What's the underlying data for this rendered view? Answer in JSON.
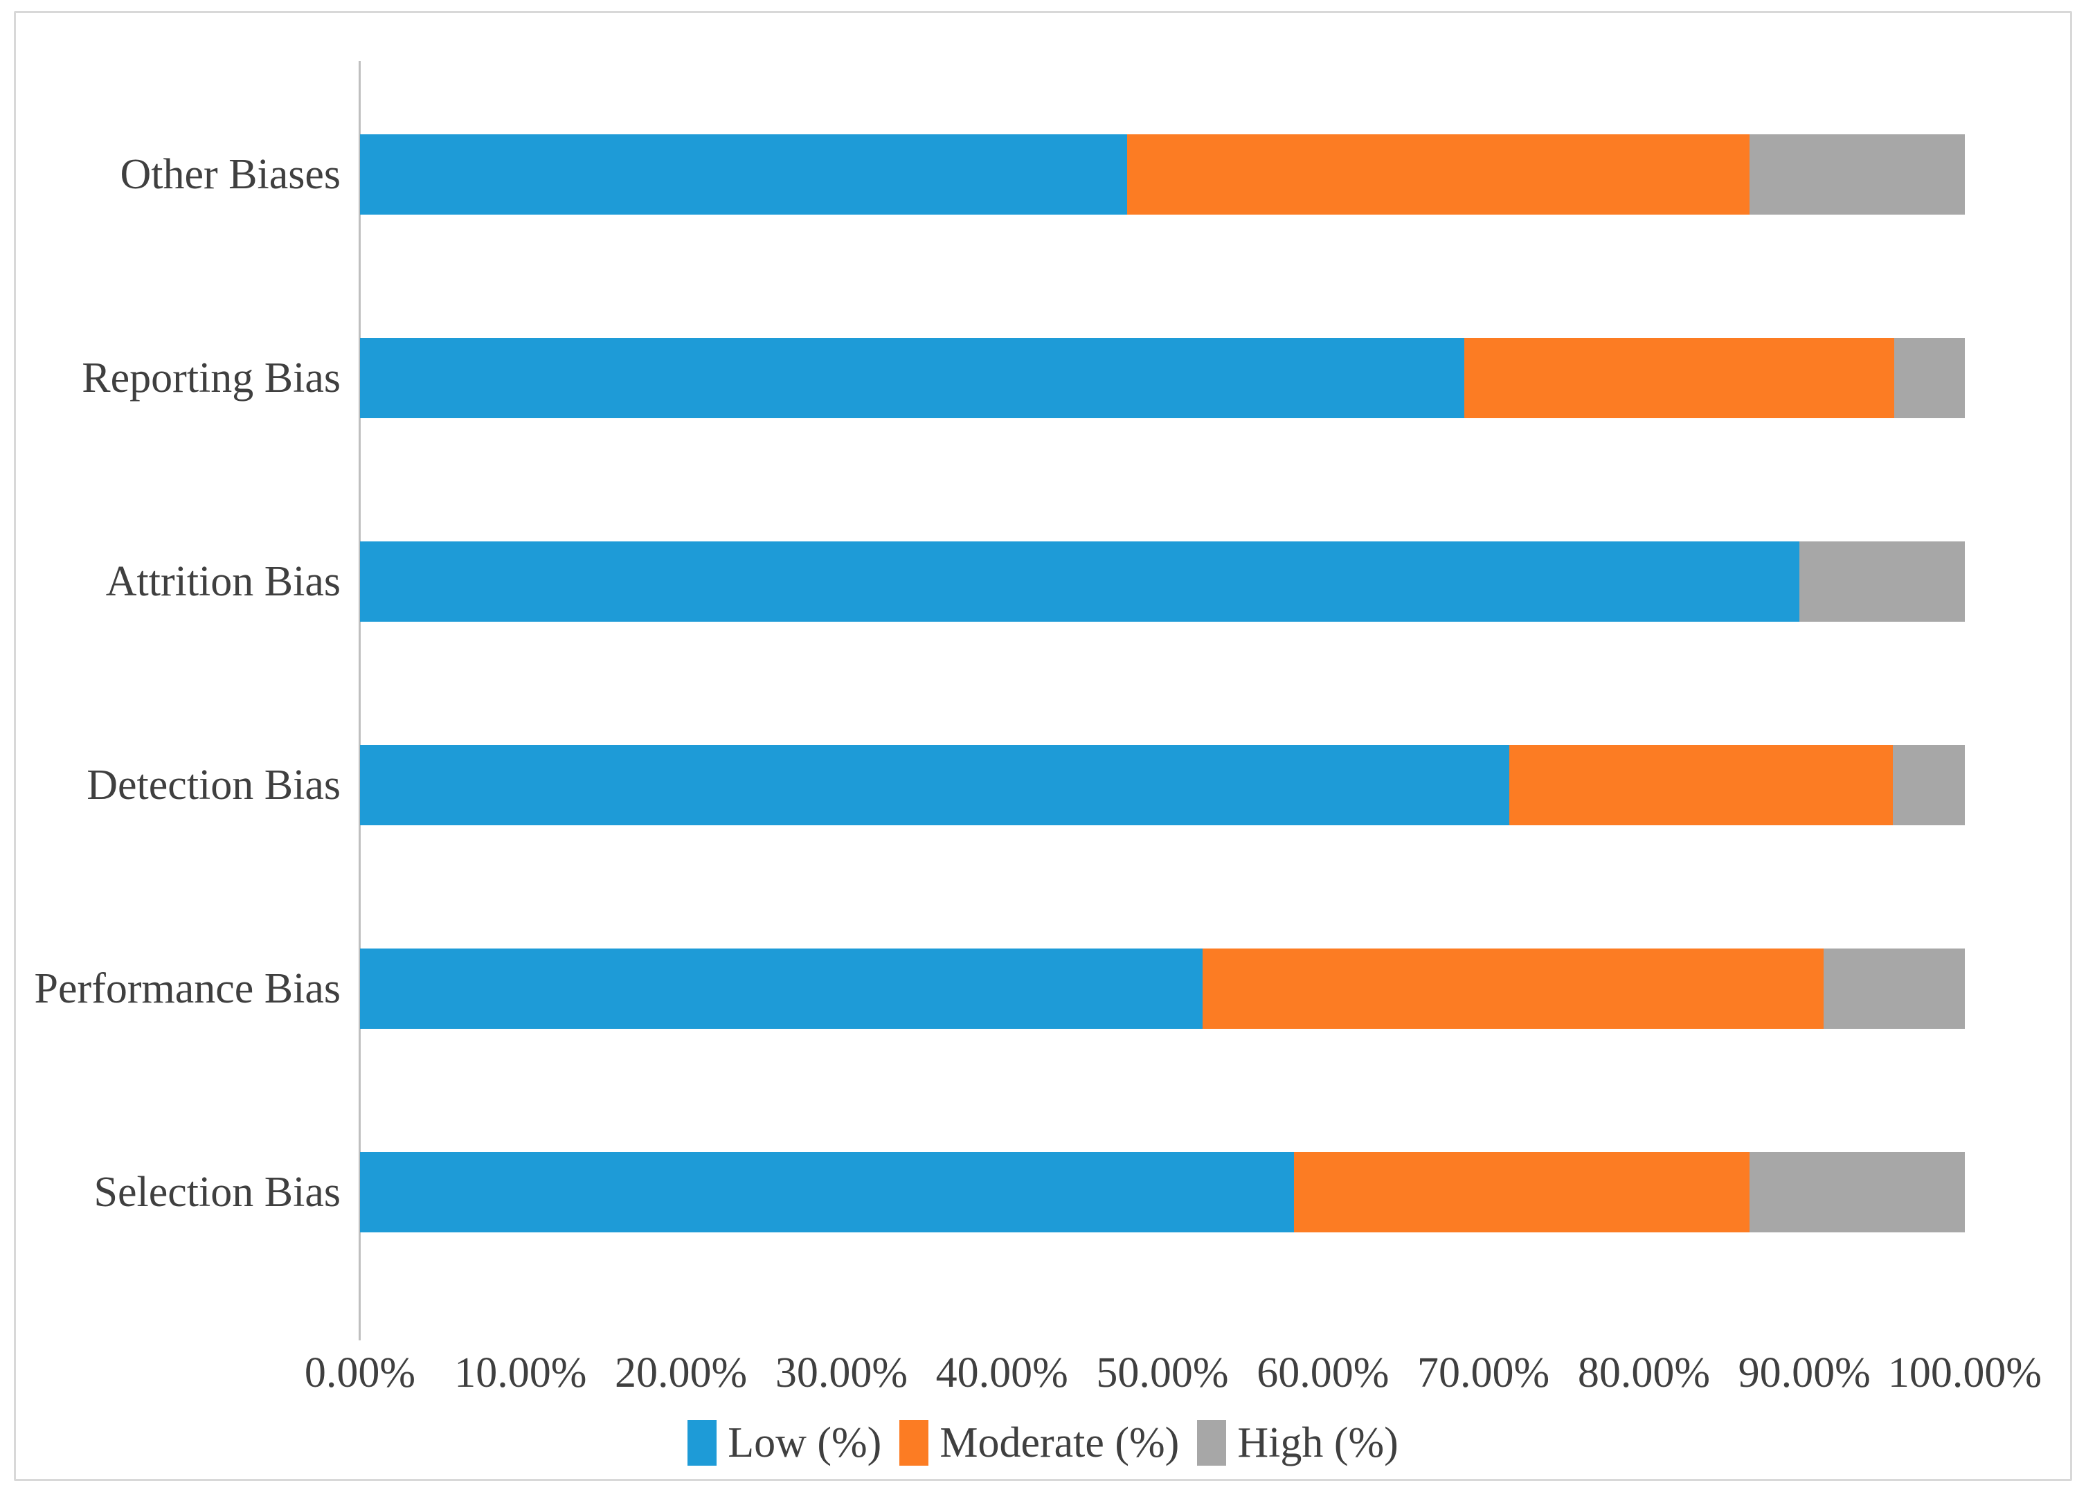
{
  "figure": {
    "background": "#FFFFFF",
    "border_color": "#D8D8D8",
    "text_color": "#3F3F3F",
    "axis_line_color": "#BFBFBF"
  },
  "chart_data": {
    "type": "bar",
    "orientation": "horizontal-stacked",
    "title": "",
    "xlabel": "",
    "ylabel": "",
    "grid": false,
    "categories": [
      "Other Biases",
      "Reporting Bias",
      "Attrition Bias",
      "Detection Bias",
      "Performance Bias",
      "Selection Bias"
    ],
    "series": [
      {
        "name": "Low (%)",
        "color": "#1E9BD7",
        "values": [
          47.8,
          68.8,
          89.7,
          71.6,
          52.5,
          58.2
        ]
      },
      {
        "name": "Moderate (%)",
        "color": "#FC7C23",
        "values": [
          38.8,
          26.8,
          0.0,
          23.9,
          38.7,
          28.4
        ]
      },
      {
        "name": "High (%)",
        "color": "#A7A7A7",
        "values": [
          13.4,
          4.4,
          10.3,
          4.5,
          8.8,
          13.4
        ]
      }
    ],
    "x_axis": {
      "min": 0,
      "max": 100,
      "ticks": [
        "0.00%",
        "10.00%",
        "20.00%",
        "30.00%",
        "40.00%",
        "50.00%",
        "60.00%",
        "70.00%",
        "80.00%",
        "90.00%",
        "100.00%"
      ]
    },
    "legend": {
      "position": "bottom",
      "entries": [
        "Low (%)",
        "Moderate (%)",
        "High (%)"
      ]
    }
  }
}
